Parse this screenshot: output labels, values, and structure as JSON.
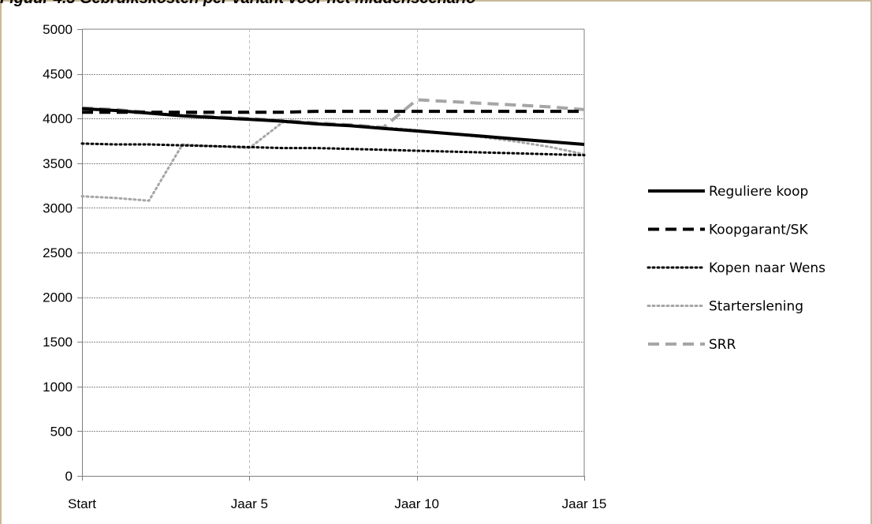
{
  "chart_data": {
    "type": "line",
    "title": "Figuur 4.3 Gebruikskosten per variant voor het middenscenario",
    "x_labels": [
      "Start",
      "Jaar 5",
      "Jaar 10",
      "Jaar 15"
    ],
    "x": [
      0,
      1,
      2,
      3,
      4,
      5,
      6,
      7,
      8,
      9,
      10,
      11,
      12,
      13,
      14,
      15
    ],
    "ylim": [
      0,
      5000
    ],
    "yticks": [
      0,
      500,
      1000,
      1500,
      2000,
      2500,
      3000,
      3500,
      4000,
      4500,
      5000
    ],
    "grid": true,
    "legend_position": "right",
    "series": [
      {
        "name": "Reguliere koop",
        "color": "#000000",
        "dash": "solid",
        "values": [
          4110,
          4090,
          4060,
          4030,
          4010,
          3990,
          3970,
          3940,
          3920,
          3890,
          3860,
          3830,
          3800,
          3770,
          3740,
          3710
        ]
      },
      {
        "name": "Koopgarant/SK",
        "color": "#000000",
        "dash": "dashed",
        "values": [
          4070,
          4070,
          4070,
          4070,
          4070,
          4070,
          4070,
          4080,
          4080,
          4080,
          4080,
          4080,
          4080,
          4080,
          4080,
          4080
        ]
      },
      {
        "name": "Kopen naar Wens",
        "color": "#000000",
        "dash": "dotted",
        "values": [
          3720,
          3710,
          3710,
          3700,
          3690,
          3680,
          3670,
          3670,
          3660,
          3650,
          3640,
          3630,
          3620,
          3610,
          3600,
          3590
        ]
      },
      {
        "name": "Starterslening",
        "color": "#a6a6a6",
        "dash": "dotted",
        "values": [
          3130,
          3110,
          3080,
          3710,
          3690,
          3670,
          3960,
          3940,
          3920,
          3900,
          3870,
          3830,
          3790,
          3740,
          3680,
          3600
        ]
      },
      {
        "name": "SRR",
        "color": "#a6a6a6",
        "dash": "dashed",
        "values": [
          4120,
          4100,
          4070,
          4050,
          4020,
          4000,
          3980,
          3950,
          3930,
          3900,
          4210,
          4190,
          4170,
          4150,
          4130,
          4100
        ]
      }
    ]
  }
}
